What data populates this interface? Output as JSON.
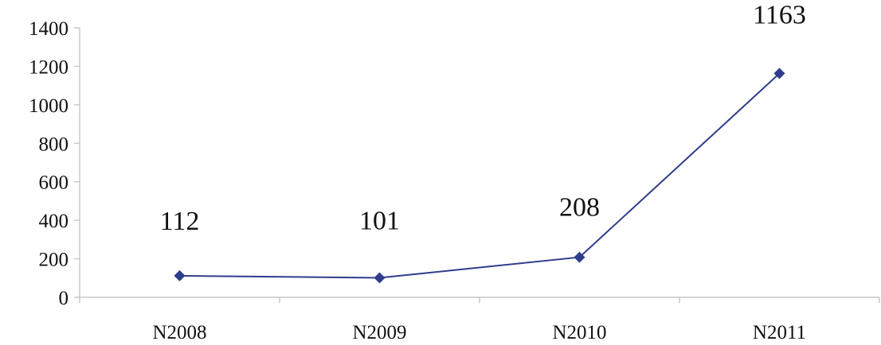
{
  "chart_data": {
    "type": "line",
    "title": "",
    "xlabel": "",
    "ylabel": "",
    "categories": [
      "N2008",
      "N2009",
      "N2010",
      "N2011"
    ],
    "series": [
      {
        "values": [
          112,
          101,
          208,
          1163
        ],
        "color": "#2f3d8c",
        "marker": "diamond"
      }
    ],
    "data_labels": [
      "112",
      "101",
      "208",
      "1163"
    ],
    "ylim": [
      0,
      1400
    ],
    "yticks": [
      0,
      200,
      400,
      600,
      800,
      1000,
      1200,
      1400
    ],
    "grid": false,
    "legend": "none"
  }
}
